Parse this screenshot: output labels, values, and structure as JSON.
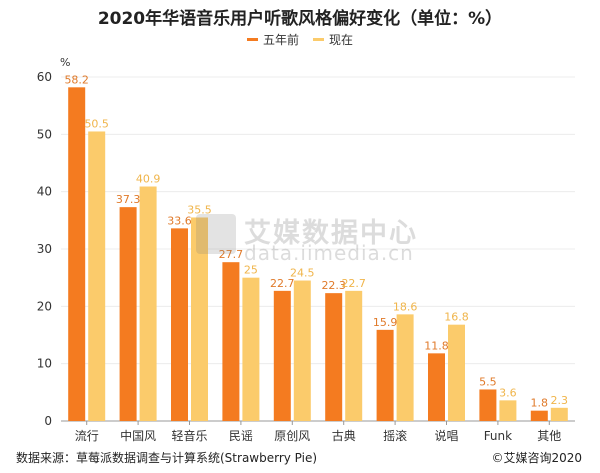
{
  "chart_data": {
    "type": "bar",
    "title": "2020年华语音乐用户听歌风格偏好变化（单位：%）",
    "ylabel": "%",
    "xlabel": "",
    "ylim": [
      0,
      60
    ],
    "yticks": [
      0,
      10,
      20,
      30,
      40,
      50,
      60
    ],
    "grid": true,
    "legend_position": "top-center",
    "categories": [
      "流行",
      "中国风",
      "轻音乐",
      "民谣",
      "原创风",
      "古典",
      "摇滚",
      "说唱",
      "Funk",
      "其他"
    ],
    "series": [
      {
        "name": "五年前",
        "color": "#F47B20",
        "labels": [
          "58.2",
          "37.3",
          "33.6",
          "27.7",
          "22.7",
          "22.3",
          "15.9",
          "11.8",
          "5.5",
          "1.8"
        ],
        "values": [
          58.2,
          37.3,
          33.6,
          27.7,
          22.7,
          22.3,
          15.9,
          11.8,
          5.5,
          1.8
        ]
      },
      {
        "name": "现在",
        "color": "#FBCB6B",
        "labels": [
          "50.5",
          "40.9",
          "35.5",
          "25",
          "24.5",
          "22.7",
          "18.6",
          "16.8",
          "3.6",
          "2.3"
        ],
        "values": [
          50.5,
          40.9,
          35.5,
          25,
          24.5,
          22.7,
          18.6,
          16.8,
          3.6,
          2.3
        ]
      }
    ],
    "label_colors": [
      "#E07A2A",
      "#F0B54B"
    ]
  },
  "footer": {
    "source": "数据来源：草莓派数据调查与计算系统(Strawberry Pie)",
    "copyright": "©艾媒咨询2020"
  },
  "watermark": {
    "cn": "艾媒数据中心",
    "en": "data.iimedia.cn"
  }
}
